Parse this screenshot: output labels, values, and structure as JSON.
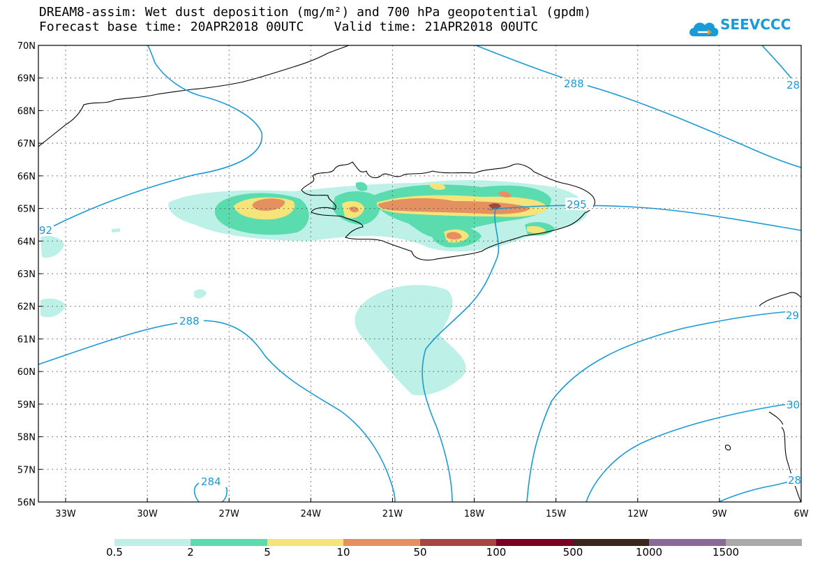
{
  "title_line1": "DREAM8-assim: Wet dust deposition (mg/m²) and 700 hPa geopotential (gpdm)",
  "title_line2": "Forecast base time: 20APR2018 00UTC    Valid time: 21APR2018 00UTC",
  "logo_text": "SEEVCCC",
  "map": {
    "lat_labels": [
      "70N",
      "69N",
      "68N",
      "67N",
      "66N",
      "65N",
      "64N",
      "63N",
      "62N",
      "61N",
      "60N",
      "59N",
      "58N",
      "57N",
      "56N"
    ],
    "lon_labels": [
      "33W",
      "30W",
      "27W",
      "24W",
      "21W",
      "18W",
      "15W",
      "12W",
      "9W",
      "6W"
    ],
    "contour_labels": [
      "288",
      "28",
      "92",
      "295",
      "288",
      "29",
      "30",
      "284",
      "28"
    ]
  },
  "colors": {
    "contour": "#1a9ad6",
    "c1": "#bdf0e6",
    "c2": "#5bdcaf",
    "c3": "#f5e47a",
    "c4": "#e59060",
    "c5": "#a3473f",
    "c6": "#7a0024",
    "c7": "#3a261c",
    "c8": "#8a6a9a",
    "c9": "#a9a9a9"
  },
  "legend": {
    "labels": [
      "0.5",
      "2",
      "5",
      "10",
      "50",
      "100",
      "500",
      "1000",
      "1500"
    ]
  }
}
